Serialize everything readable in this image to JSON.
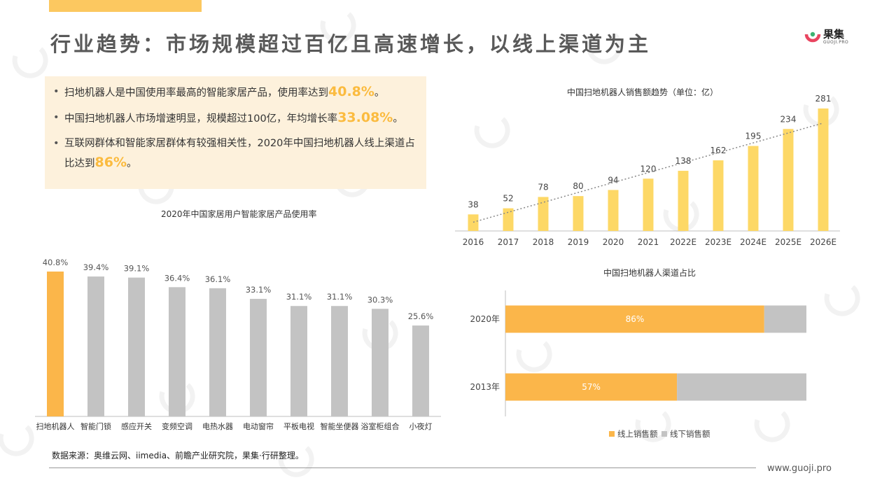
{
  "header": {
    "title": "行业趋势：市场规模超过百亿且高速增长，以线上渠道为主",
    "logo_name": "果集",
    "logo_sub": "GUOJI.PRO",
    "accent_color": "#fcc860"
  },
  "bullets": [
    {
      "text": "扫地机器人是中国使用率最高的智能家居产品，使用率达到",
      "highlight": "40.8%",
      "suffix": "。"
    },
    {
      "text": "中国扫地机器人市场增速明显，规模超过100亿，年均增长率",
      "highlight": "33.08%",
      "suffix": "。"
    },
    {
      "text": "互联网群体和智能家居群体有较强相关性，2020年中国扫地机器人线上渠道占比达到",
      "highlight": "86%",
      "suffix": "。"
    }
  ],
  "chart_data": [
    {
      "id": "usage",
      "type": "bar",
      "title": "2020年中国家居用户智能家居产品使用率",
      "categories": [
        "扫地机器人",
        "智能门锁",
        "感应开关",
        "变频空调",
        "电热水器",
        "电动窗帘",
        "平板电视",
        "智能坐便器",
        "浴室柜组合",
        "小夜灯"
      ],
      "values": [
        40.8,
        39.4,
        39.1,
        36.4,
        36.1,
        33.1,
        31.1,
        31.1,
        30.3,
        25.6
      ],
      "value_labels": [
        "40.8%",
        "39.4%",
        "39.1%",
        "36.4%",
        "36.1%",
        "33.1%",
        "31.1%",
        "31.1%",
        "30.3%",
        "25.6%"
      ],
      "highlight_index": 0,
      "colors": {
        "highlight": "#fbb64a",
        "bar": "#c3c3c3"
      },
      "ylim": [
        0,
        45
      ]
    },
    {
      "id": "sales",
      "type": "bar",
      "title": "中国扫地机器人销售额趋势（单位：亿）",
      "categories": [
        "2016",
        "2017",
        "2018",
        "2019",
        "2020",
        "2021",
        "2022E",
        "2023E",
        "2024E",
        "2025E",
        "2026E"
      ],
      "values": [
        38,
        52,
        78,
        80,
        94,
        120,
        138,
        162,
        195,
        234,
        281
      ],
      "trendline": true,
      "colors": {
        "bar": "#fdd866",
        "trend": "#888888"
      },
      "ylim": [
        0,
        300
      ]
    },
    {
      "id": "channel",
      "type": "bar",
      "orientation": "horizontal",
      "stacked": true,
      "title": "中国扫地机器人渠道占比",
      "categories": [
        "2020年",
        "2013年"
      ],
      "series": [
        {
          "name": "线上销售额",
          "values": [
            86,
            57
          ],
          "labels": [
            "86%",
            "57%"
          ],
          "color": "#fbb64a"
        },
        {
          "name": "线下销售额",
          "values": [
            14,
            43
          ],
          "color": "#c3c3c3"
        }
      ],
      "xlim": [
        0,
        100
      ],
      "legend": "bottom"
    }
  ],
  "footer": {
    "source": "数据来源：奥维云网、iimedia、前瞻产业研究院，果集·行研整理。",
    "url": "www.guoji.pro"
  }
}
